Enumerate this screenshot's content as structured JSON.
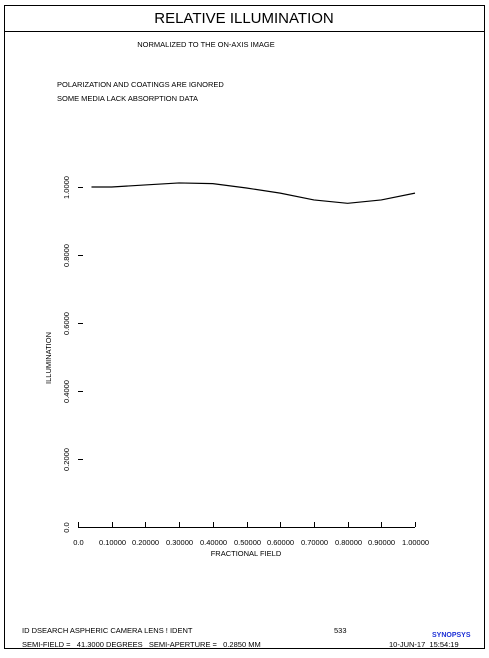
{
  "chart_data": {
    "type": "line",
    "title": "RELATIVE ILLUMINATION",
    "subtitle": "NORMALIZED TO THE ON-AXIS IMAGE",
    "annotations": [
      "POLARIZATION AND COATINGS ARE IGNORED",
      "SOME MEDIA LACK ABSORPTION DATA"
    ],
    "x_label": "FRACTIONAL FIELD",
    "y_label": "ILLUMINATION",
    "x": [
      0.04,
      0.1,
      0.2,
      0.3,
      0.4,
      0.5,
      0.6,
      0.7,
      0.8,
      0.9,
      1.0
    ],
    "series": [
      {
        "color": "#000000",
        "values": [
          1.0,
          1.0,
          1.006,
          1.012,
          1.01,
          0.997,
          0.982,
          0.962,
          0.952,
          0.962,
          0.982
        ]
      }
    ],
    "xlim": [
      0,
      1
    ],
    "ylim": [
      0,
      1
    ],
    "xticks": [
      {
        "value": 0,
        "label": "0.0"
      },
      {
        "value": 0.1,
        "label": "0.10000"
      },
      {
        "value": 0.2,
        "label": "0.20000"
      },
      {
        "value": 0.3,
        "label": "0.30000"
      },
      {
        "value": 0.4,
        "label": "0.40000"
      },
      {
        "value": 0.5,
        "label": "0.50000"
      },
      {
        "value": 0.6,
        "label": "0.60000"
      },
      {
        "value": 0.7,
        "label": "0.70000"
      },
      {
        "value": 0.8,
        "label": "0.80000"
      },
      {
        "value": 0.9,
        "label": "0.90000"
      },
      {
        "value": 1,
        "label": "1.00000"
      }
    ],
    "yticks": [
      {
        "value": 0,
        "label": "0.0"
      },
      {
        "value": 0.2,
        "label": "0.2000"
      },
      {
        "value": 0.4,
        "label": "0.4000"
      },
      {
        "value": 0.6,
        "label": "0.6000"
      },
      {
        "value": 0.8,
        "label": "0.8000"
      },
      {
        "value": 1,
        "label": "1.0000"
      }
    ]
  },
  "footer": {
    "lens": "ID DSEARCH ASPHERIC CAMERA LENS ! IDENT",
    "number": "533",
    "logo": "SYNOPSYS",
    "field": "SEMI-FIELD =   41.3000 DEGREES   SEMI-APERTURE =   0.2850 MM",
    "date": "10-JUN-17  15:54:19"
  }
}
